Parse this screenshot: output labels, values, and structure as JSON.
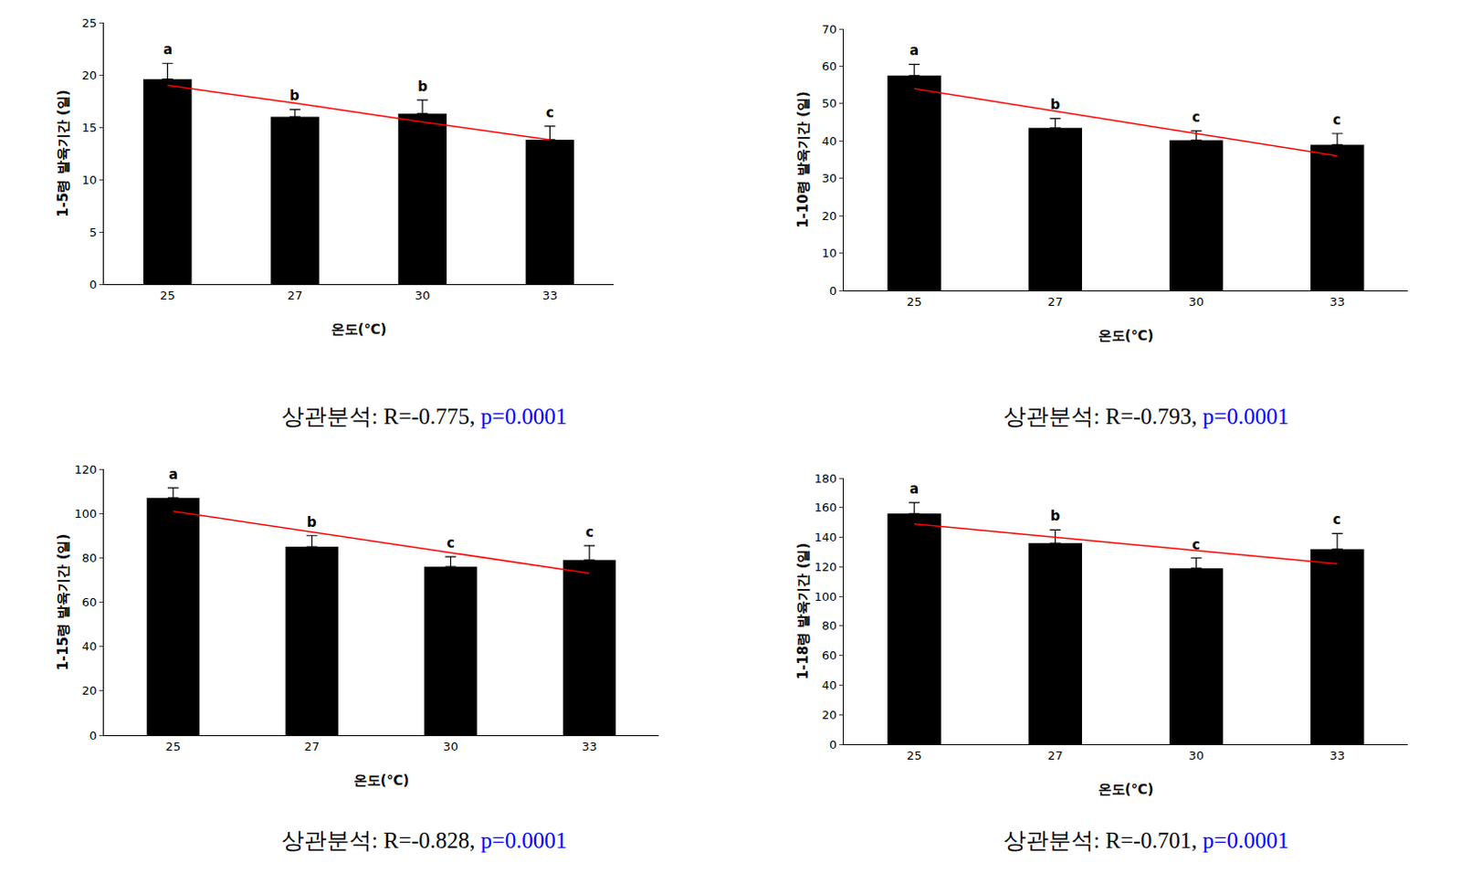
{
  "chart_data": [
    {
      "type": "bar",
      "categories": [
        "25",
        "27",
        "30",
        "33"
      ],
      "values": [
        19.6,
        16.0,
        16.3,
        13.8
      ],
      "error": [
        1.5,
        0.7,
        1.3,
        1.3
      ],
      "color": "#000000",
      "ylim": [
        0,
        25
      ],
      "yticks": [
        0,
        5,
        10,
        15,
        20,
        25
      ],
      "grid": false,
      "x_label": "온도(℃)",
      "y_label": "1-5령 발육기간 (일)",
      "annotations": [
        "a",
        "b",
        "b",
        "c"
      ],
      "trend": {
        "color": "#ff0000",
        "values": [
          19.0,
          17.3,
          15.5,
          13.8
        ]
      },
      "caption": [
        "상관분석:  R=-0.775,",
        "p=0.0001"
      ],
      "caption_colors": [
        "#000000",
        "#0000ff"
      ]
    },
    {
      "type": "bar",
      "categories": [
        "25",
        "27",
        "30",
        "33"
      ],
      "values": [
        57.5,
        43.5,
        40.2,
        39.0
      ],
      "error": [
        3.0,
        2.5,
        2.5,
        3.0
      ],
      "color": "#000000",
      "ylim": [
        0,
        70
      ],
      "yticks": [
        0,
        10,
        20,
        30,
        40,
        50,
        60,
        70
      ],
      "grid": false,
      "x_label": "온도(℃)",
      "y_label": "1-10령 발육기간 (일)",
      "annotations": [
        "a",
        "b",
        "c",
        "c"
      ],
      "trend": {
        "color": "#ff0000",
        "values": [
          54.0,
          48.0,
          42.0,
          36.0
        ]
      },
      "caption": [
        "상관분석:  R=-0.793,",
        "p=0.0001"
      ],
      "caption_colors": [
        "#000000",
        "#0000ff"
      ]
    },
    {
      "type": "bar",
      "categories": [
        "25",
        "27",
        "30",
        "33"
      ],
      "values": [
        107,
        85,
        76,
        79
      ],
      "error": [
        4.5,
        5,
        4.5,
        6.5
      ],
      "color": "#000000",
      "ylim": [
        0,
        120
      ],
      "yticks": [
        0,
        20,
        40,
        60,
        80,
        100,
        120
      ],
      "grid": false,
      "x_label": "온도(℃)",
      "y_label": "1-15령 발육기간 (일)",
      "annotations": [
        "a",
        "b",
        "c",
        "c"
      ],
      "trend": {
        "color": "#ff0000",
        "values": [
          101,
          91.7,
          82.3,
          73
        ]
      },
      "caption": [
        "상관분석:  R=-0.828,",
        "p=0.0001"
      ],
      "caption_colors": [
        "#000000",
        "#0000ff"
      ]
    },
    {
      "type": "bar",
      "categories": [
        "25",
        "27",
        "30",
        "33"
      ],
      "values": [
        156,
        136,
        119,
        132
      ],
      "error": [
        7.5,
        9,
        7,
        10.5
      ],
      "color": "#000000",
      "ylim": [
        0,
        180
      ],
      "yticks": [
        0,
        20,
        40,
        60,
        80,
        100,
        120,
        140,
        160,
        180
      ],
      "grid": false,
      "x_label": "온도(℃)",
      "y_label": "1-18령 발육기간 (일)",
      "annotations": [
        "a",
        "b",
        "c",
        "c"
      ],
      "trend": {
        "color": "#ff0000",
        "values": [
          149,
          140,
          131,
          122
        ]
      },
      "caption": [
        "상관분석:  R=-0.701,",
        "p=0.0001"
      ],
      "caption_colors": [
        "#000000",
        "#0000ff"
      ]
    }
  ]
}
